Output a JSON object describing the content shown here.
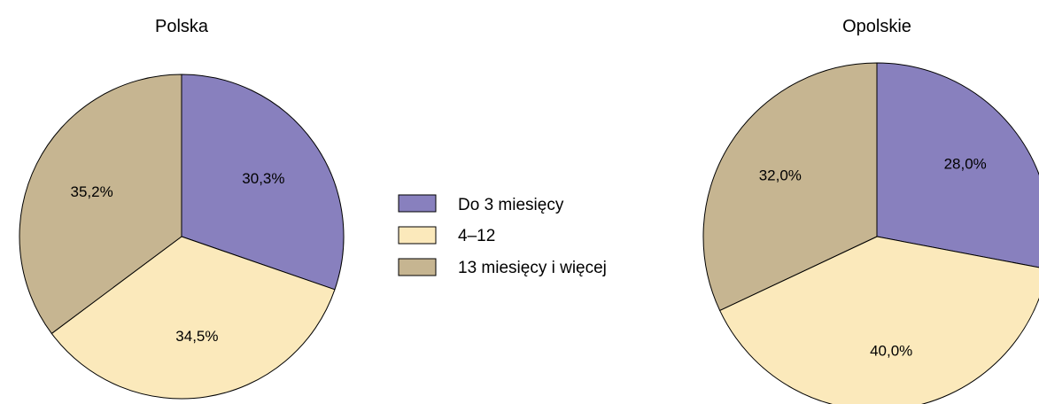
{
  "chart_data": [
    {
      "type": "pie",
      "title": "Polska",
      "categories": [
        "Do 3 miesięcy",
        "4–12",
        "13 miesięcy i więcej"
      ],
      "values": [
        30.3,
        34.5,
        35.2
      ],
      "value_labels": [
        "30,3%",
        "34,5%",
        "35,2%"
      ],
      "start": "12 o'clock",
      "direction": "clockwise"
    },
    {
      "type": "pie",
      "title": "Opolskie",
      "categories": [
        "Do 3 miesięcy",
        "4–12",
        "13 miesięcy i więcej"
      ],
      "values": [
        28.0,
        40.0,
        32.0
      ],
      "value_labels": [
        "28,0%",
        "40,0%",
        "32,0%"
      ],
      "start": "12 o'clock",
      "direction": "clockwise"
    }
  ],
  "legend": {
    "placement": "center",
    "items": [
      {
        "label": "Do 3 miesięcy",
        "color": "#8880be"
      },
      {
        "label": "4–12",
        "color": "#fbe9bb"
      },
      {
        "label": "13 miesięcy i więcej",
        "color": "#c6b591"
      }
    ]
  },
  "colors": {
    "slice_stroke": "#000000",
    "background": "#ffffff"
  }
}
